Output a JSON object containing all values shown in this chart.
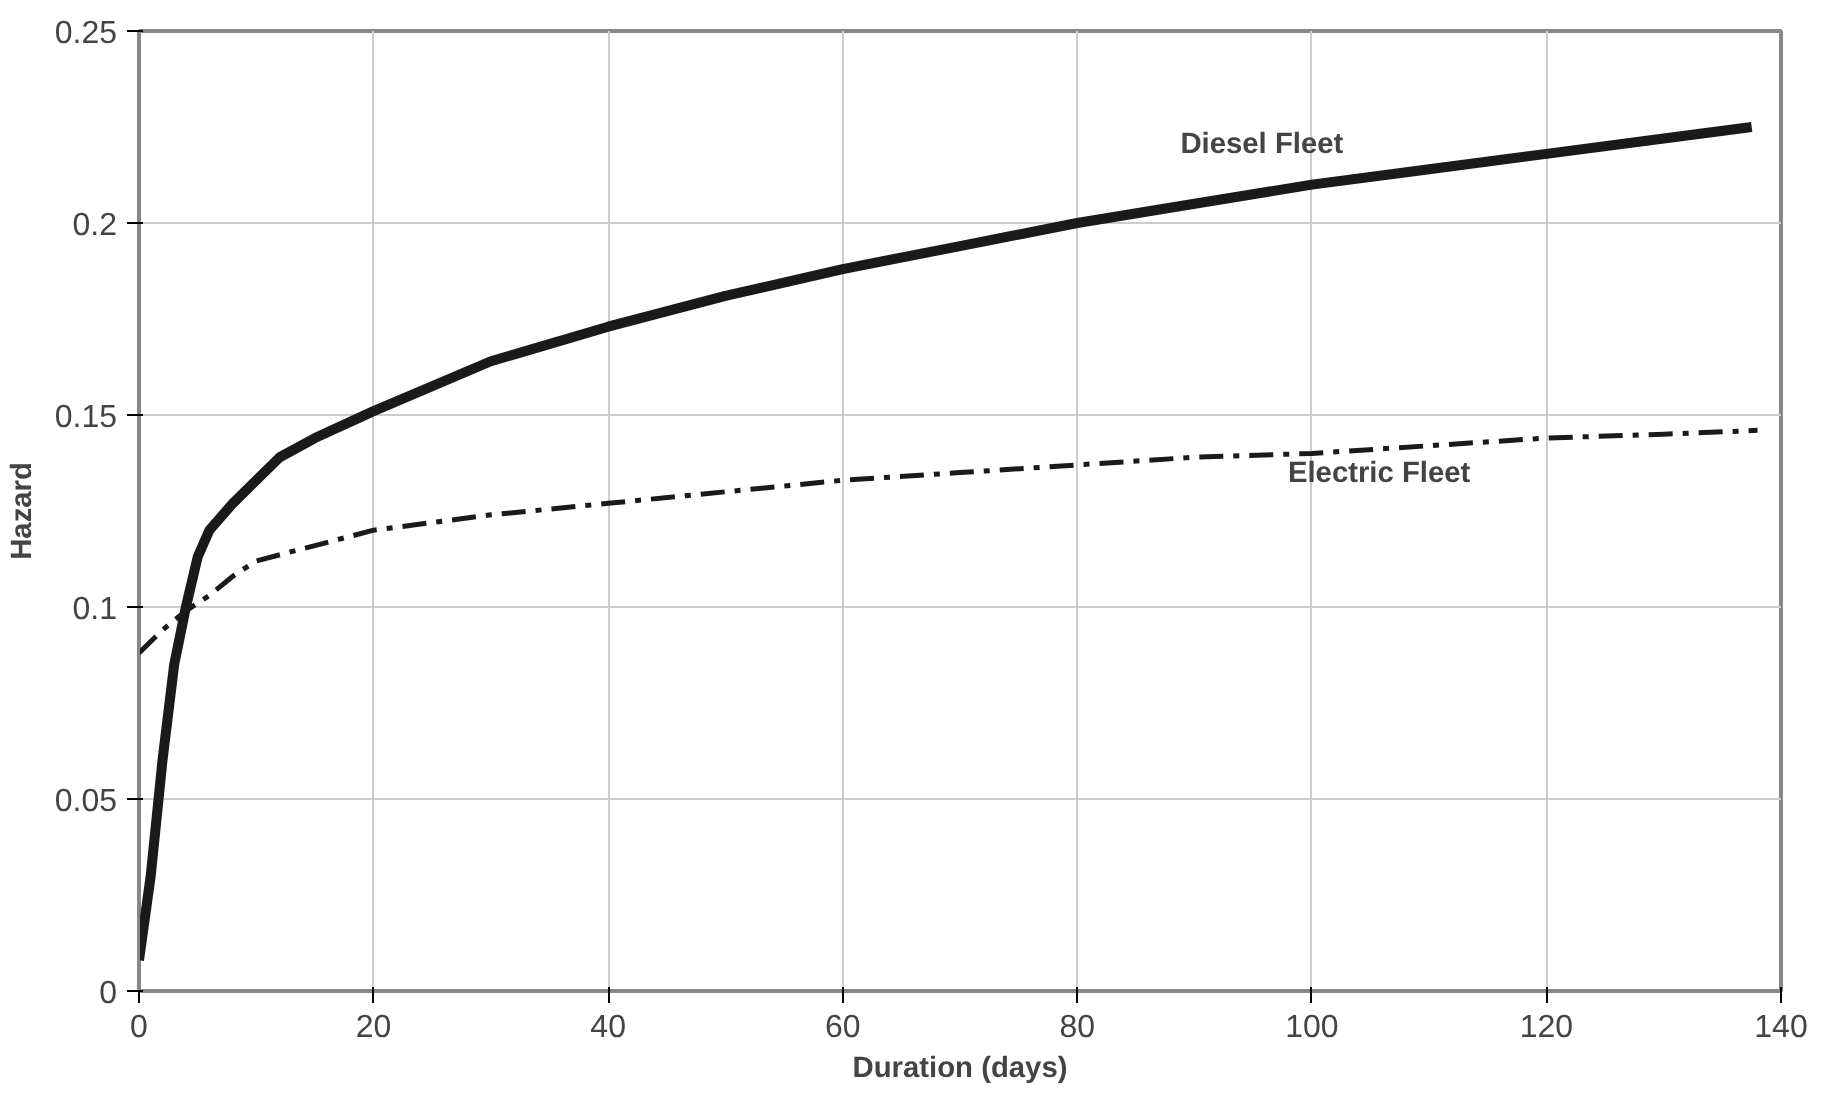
{
  "chart_data": {
    "type": "line",
    "xlabel": "Duration (days)",
    "ylabel": "Hazard",
    "xlim": [
      0,
      140
    ],
    "ylim": [
      0,
      0.25
    ],
    "xticks": [
      0,
      20,
      40,
      60,
      80,
      100,
      120,
      140
    ],
    "yticks": [
      0,
      0.05,
      0.1,
      0.15,
      0.2,
      0.25
    ],
    "grid": true,
    "marker": "none",
    "series": [
      {
        "name": "Diesel Fleet",
        "color": "#1a1a1a",
        "line_style": "solid",
        "x": [
          0,
          1,
          2,
          3,
          4,
          5,
          6,
          8,
          10,
          12,
          15,
          20,
          30,
          40,
          50,
          60,
          70,
          80,
          90,
          100,
          110,
          120,
          130,
          137.5
        ],
        "values": [
          0.008,
          0.03,
          0.06,
          0.085,
          0.1,
          0.113,
          0.12,
          0.127,
          0.133,
          0.139,
          0.144,
          0.151,
          0.164,
          0.173,
          0.181,
          0.188,
          0.194,
          0.2,
          0.205,
          0.21,
          0.214,
          0.218,
          0.222,
          0.225
        ]
      },
      {
        "name": "Electric Fleet",
        "color": "#1a1a1a",
        "line_style": "dashed",
        "x": [
          0,
          2,
          4,
          6,
          8,
          10,
          15,
          20,
          30,
          40,
          50,
          60,
          70,
          80,
          90,
          100,
          110,
          120,
          130,
          138
        ],
        "values": [
          0.088,
          0.094,
          0.099,
          0.103,
          0.108,
          0.112,
          0.116,
          0.12,
          0.124,
          0.127,
          0.13,
          0.133,
          0.135,
          0.137,
          0.139,
          0.14,
          0.142,
          0.144,
          0.145,
          0.146
        ]
      }
    ]
  }
}
